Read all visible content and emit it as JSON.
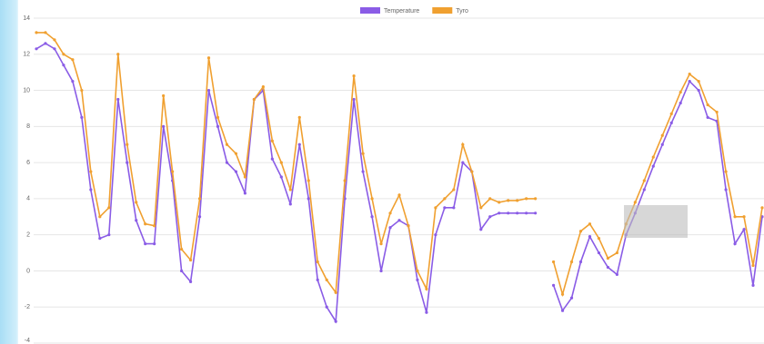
{
  "chart_data": {
    "type": "line",
    "legend": "top",
    "grid": true,
    "ylim": [
      -4,
      14
    ],
    "yticks": [
      -4,
      -2,
      0,
      2,
      4,
      6,
      8,
      10,
      12,
      14
    ],
    "categories": [
      null,
      null,
      null,
      null,
      null,
      null,
      null,
      null,
      null,
      null,
      null,
      null,
      null,
      null,
      null,
      null,
      null,
      null,
      null,
      null,
      null,
      null,
      null,
      null,
      null,
      null,
      null,
      null,
      null,
      null,
      null,
      null,
      null,
      null,
      null,
      null,
      null,
      null,
      null,
      null,
      null,
      null,
      null,
      null,
      null,
      null,
      null,
      null,
      null,
      null,
      null,
      null,
      null,
      null,
      null,
      null,
      null,
      null,
      null,
      null,
      null,
      null,
      null,
      null,
      null,
      null,
      null,
      null,
      null,
      null,
      null,
      null,
      null,
      null,
      null,
      null,
      null,
      null,
      null,
      null,
      null
    ],
    "series": [
      {
        "name": "Temperature",
        "color": "#8a5ce6",
        "values": [
          12.3,
          12.6,
          12.3,
          11.4,
          10.5,
          8.5,
          4.5,
          1.8,
          2.0,
          9.5,
          6,
          2.8,
          1.5,
          1.5,
          8,
          5,
          0,
          -0.6,
          3,
          10,
          8,
          6,
          5.5,
          4.3,
          9.5,
          10,
          6.2,
          5.2,
          3.7,
          7,
          4,
          -0.5,
          -2,
          -2.8,
          4,
          9.5,
          5.5,
          3,
          0,
          2.4,
          2.8,
          2.5,
          -0.5,
          -2.3,
          2,
          3.5,
          3.5,
          6,
          5.5,
          2.3,
          3,
          3.2,
          3.2,
          3.2,
          3.2,
          3.2,
          null,
          -0.8,
          -2.2,
          -1.5,
          0.5,
          1.9,
          1,
          0.2,
          -0.2,
          2,
          3.2,
          4.5,
          5.8,
          7,
          8.2,
          9.3,
          10.5,
          10,
          8.5,
          8.3,
          4.5,
          1.5,
          2.3,
          -0.8,
          3
        ]
      },
      {
        "name": "Tyro",
        "color": "#f0a030",
        "values": [
          13.2,
          13.2,
          12.8,
          12.0,
          11.7,
          10,
          5.5,
          3,
          3.5,
          12,
          7,
          3.8,
          2.6,
          2.5,
          9.7,
          5.5,
          1.2,
          0.6,
          4,
          11.8,
          8.5,
          7,
          6.5,
          5.2,
          9.5,
          10.2,
          7.2,
          6,
          4.5,
          8.5,
          5,
          0.5,
          -0.5,
          -1.2,
          5,
          10.8,
          6.5,
          4,
          1.5,
          3.2,
          4.2,
          2.5,
          0,
          -1,
          3.5,
          4,
          4.5,
          7,
          5.5,
          3.5,
          4,
          3.8,
          3.9,
          3.9,
          4,
          4.0,
          null,
          0.5,
          -1.3,
          0.5,
          2.2,
          2.6,
          1.8,
          0.7,
          1,
          2.6,
          3.8,
          5,
          6.3,
          7.5,
          8.7,
          9.9,
          10.9,
          10.5,
          9.2,
          8.8,
          5.5,
          3,
          3,
          0.3,
          3.5
        ]
      }
    ]
  }
}
